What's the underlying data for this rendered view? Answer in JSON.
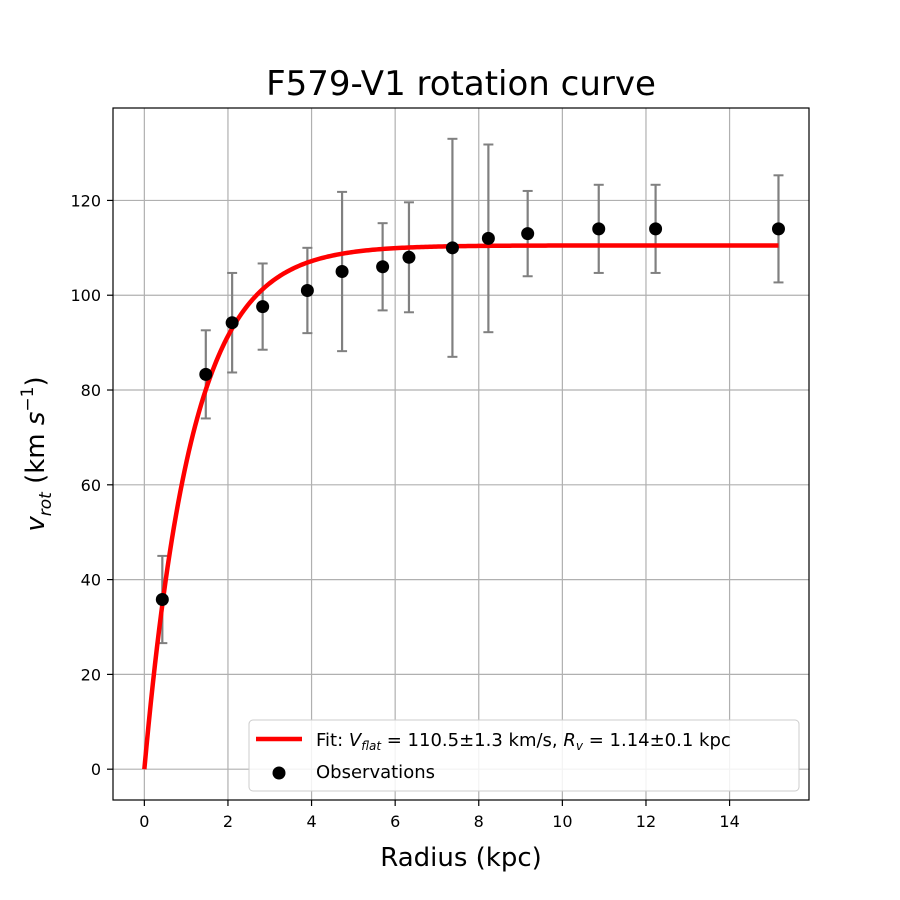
{
  "chart_data": {
    "type": "scatter",
    "title": "F579-V1 rotation curve",
    "xlabel": "Radius (kpc)",
    "ylabel": "v_rot (km s^-1)",
    "xlim": [
      -0.75,
      15.9
    ],
    "ylim": [
      -6.5,
      139.5
    ],
    "xticks": [
      0,
      2,
      4,
      6,
      8,
      10,
      12,
      14
    ],
    "yticks": [
      0,
      20,
      40,
      60,
      80,
      100,
      120
    ],
    "grid": true,
    "legend_position": "lower-right",
    "series": [
      {
        "name": "Observations",
        "kind": "scatter",
        "color": "#000000",
        "error_color": "#808080",
        "x": [
          0.43,
          1.47,
          2.1,
          2.83,
          3.9,
          4.73,
          5.7,
          6.33,
          7.37,
          8.23,
          9.17,
          10.87,
          12.23,
          15.17
        ],
        "y": [
          35.8,
          83.3,
          94.2,
          97.6,
          101.0,
          105.0,
          106.0,
          108.0,
          110.0,
          112.0,
          113.0,
          114.0,
          114.0,
          114.0
        ],
        "yerr": [
          9.2,
          9.3,
          10.5,
          9.1,
          9.0,
          16.8,
          9.2,
          11.6,
          23.0,
          19.8,
          9.0,
          9.3,
          9.3,
          11.3
        ]
      },
      {
        "name": "Fit: V_flat = 110.5±1.3 km/s, R_v = 1.14±0.1 kpc",
        "kind": "line",
        "color": "#ff0000",
        "model": "V_flat*(1-exp(-R/R_v))",
        "V_flat": 110.5,
        "R_v": 1.14,
        "x_range": [
          0,
          15.17
        ]
      }
    ],
    "legend": {
      "fit_prefix": "Fit: ",
      "fit_vsym": "V",
      "fit_vsub": "flat",
      "fit_vval": " = 110.5±1.3 km/s, ",
      "fit_rsym": "R",
      "fit_rsub": "v",
      "fit_rval": " = 1.14±0.1 kpc",
      "obs_label": "Observations"
    },
    "ylabel_parts": {
      "sym": "v",
      "sub": "rot",
      "unit_open": " (km ",
      "unit_s": "s",
      "unit_exp": "−1",
      "unit_close": ")"
    }
  }
}
